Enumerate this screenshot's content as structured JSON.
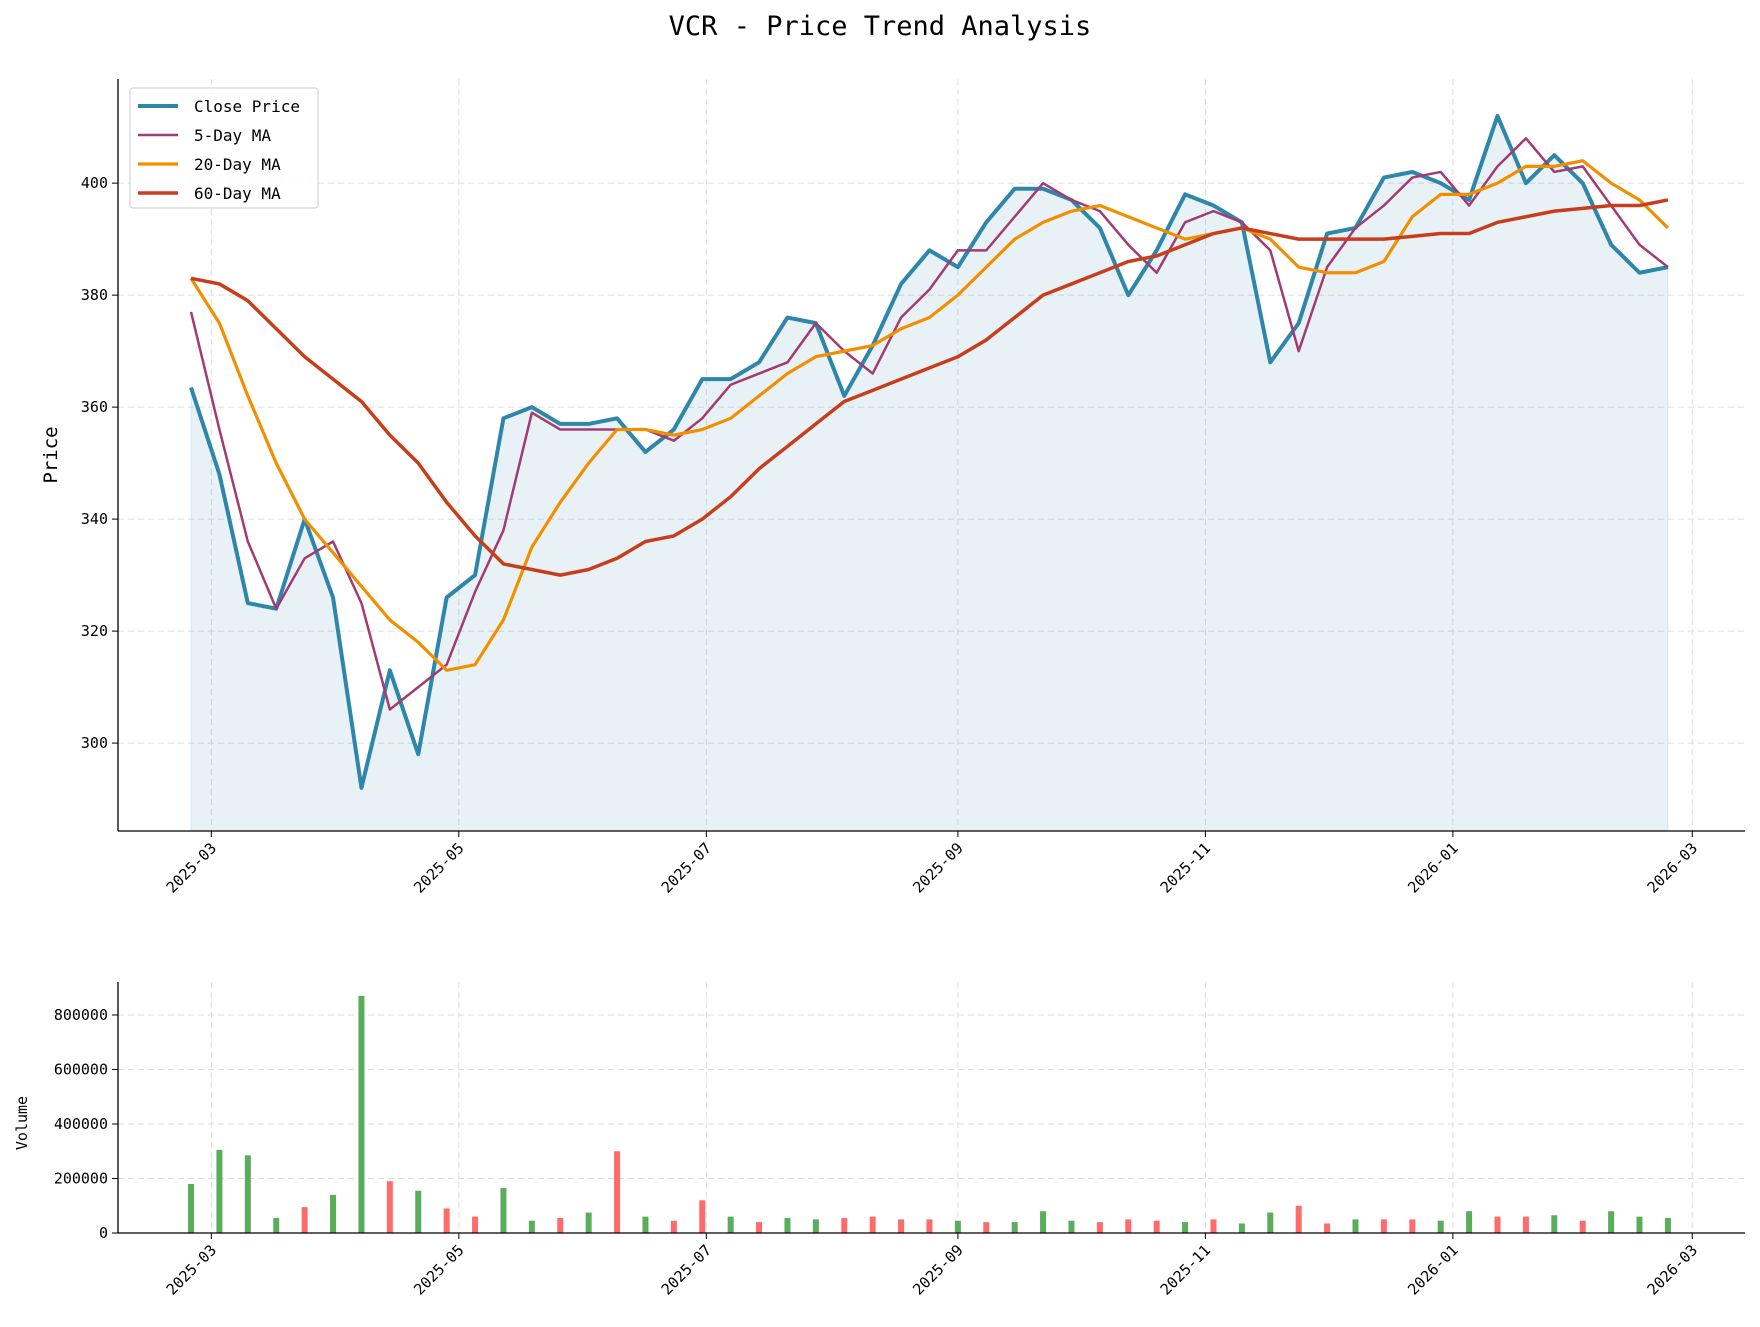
{
  "chart_data": [
    {
      "type": "line",
      "title": "VCR - Price Trend Analysis",
      "xlabel": "",
      "ylabel": "Price",
      "xlim": [
        "2025-02-06",
        "2026-03-14"
      ],
      "ylim": [
        284.3,
        418.6
      ],
      "yticks": [
        300,
        320,
        340,
        360,
        380,
        400
      ],
      "xticks": [
        "2025-03",
        "2025-05",
        "2025-07",
        "2025-09",
        "2025-11",
        "2026-01",
        "2026-03"
      ],
      "grid": true,
      "legend": "top-left",
      "fill_under_close": true,
      "x": [
        "2025-02-24",
        "2025-03-03",
        "2025-03-10",
        "2025-03-17",
        "2025-03-24",
        "2025-03-31",
        "2025-04-07",
        "2025-04-14",
        "2025-04-21",
        "2025-04-28",
        "2025-05-05",
        "2025-05-12",
        "2025-05-19",
        "2025-05-26",
        "2025-06-02",
        "2025-06-09",
        "2025-06-16",
        "2025-06-23",
        "2025-06-30",
        "2025-07-07",
        "2025-07-14",
        "2025-07-21",
        "2025-07-28",
        "2025-08-04",
        "2025-08-11",
        "2025-08-18",
        "2025-08-25",
        "2025-09-01",
        "2025-09-08",
        "2025-09-15",
        "2025-09-22",
        "2025-09-29",
        "2025-10-06",
        "2025-10-13",
        "2025-10-20",
        "2025-10-27",
        "2025-11-03",
        "2025-11-10",
        "2025-11-17",
        "2025-11-24",
        "2025-12-01",
        "2025-12-08",
        "2025-12-15",
        "2025-12-22",
        "2025-12-29",
        "2026-01-05",
        "2026-01-12",
        "2026-01-19",
        "2026-01-26",
        "2026-02-02",
        "2026-02-09",
        "2026-02-16",
        "2026-02-23"
      ],
      "series": [
        {
          "name": "Close Price",
          "color": "#2e86ab",
          "values": [
            363.5,
            348,
            325,
            324,
            340,
            326,
            292,
            313,
            298,
            326,
            330,
            358,
            360,
            357,
            357,
            358,
            352,
            356,
            365,
            365,
            368,
            376,
            375,
            362,
            371,
            382,
            388,
            385,
            393,
            399,
            399,
            397,
            392,
            380,
            388,
            398,
            396,
            393,
            368,
            375,
            391,
            392,
            401,
            402,
            400,
            397,
            412,
            400,
            405,
            400,
            389,
            384,
            385
          ]
        },
        {
          "name": "5-Day MA",
          "color": "#a23b72",
          "values": [
            377,
            356,
            336,
            324,
            333,
            336,
            325,
            306,
            310,
            314,
            327,
            338,
            359,
            356,
            356,
            356,
            356,
            354,
            358,
            364,
            366,
            368,
            375,
            370,
            366,
            376,
            381,
            388,
            388,
            394,
            400,
            397,
            395,
            389,
            384,
            393,
            395,
            393,
            388,
            370,
            385,
            392,
            396,
            401,
            402,
            396,
            403,
            408,
            402,
            403,
            396,
            389,
            385
          ]
        },
        {
          "name": "20-Day MA",
          "color": "#f18f01",
          "values": [
            383,
            375,
            362,
            350,
            340,
            334,
            328,
            322,
            318,
            313,
            314,
            322,
            335,
            343,
            350,
            356,
            356,
            355,
            356,
            358,
            362,
            366,
            369,
            370,
            371,
            374,
            376,
            380,
            385,
            390,
            393,
            395,
            396,
            394,
            392,
            390,
            391,
            392,
            390,
            385,
            384,
            384,
            386,
            394,
            398,
            398,
            400,
            403,
            403,
            404,
            400,
            397,
            392
          ]
        },
        {
          "name": "60-Day MA",
          "color": "#c73e1d",
          "values": [
            383,
            382,
            379,
            374,
            369,
            365,
            361,
            355,
            350,
            343,
            337,
            332,
            331,
            330,
            331,
            333,
            336,
            337,
            340,
            344,
            349,
            353,
            357,
            361,
            363,
            365,
            367,
            369,
            372,
            376,
            380,
            382,
            384,
            386,
            387,
            389,
            391,
            392,
            391,
            390,
            390,
            390,
            390,
            390.5,
            391,
            391,
            393,
            394,
            395,
            395.5,
            396,
            396,
            397
          ]
        }
      ]
    },
    {
      "type": "bar",
      "xlabel": "",
      "ylabel": "Volume",
      "ylim": [
        0,
        921000
      ],
      "yticks": [
        "0",
        "200000",
        "400000",
        "600000",
        "800000"
      ],
      "xticks": [
        "2025-03",
        "2025-05",
        "2025-07",
        "2025-09",
        "2025-11",
        "2026-01",
        "2026-03"
      ],
      "grid": true,
      "up_color": "#5aad5a",
      "down_color": "#ff6b6b",
      "x": [
        "2025-02-24",
        "2025-03-03",
        "2025-03-10",
        "2025-03-17",
        "2025-03-24",
        "2025-03-31",
        "2025-04-07",
        "2025-04-14",
        "2025-04-21",
        "2025-04-28",
        "2025-05-05",
        "2025-05-12",
        "2025-05-19",
        "2025-05-26",
        "2025-06-02",
        "2025-06-09",
        "2025-06-16",
        "2025-06-23",
        "2025-06-30",
        "2025-07-07",
        "2025-07-14",
        "2025-07-21",
        "2025-07-28",
        "2025-08-04",
        "2025-08-11",
        "2025-08-18",
        "2025-08-25",
        "2025-09-01",
        "2025-09-08",
        "2025-09-15",
        "2025-09-22",
        "2025-09-29",
        "2025-10-06",
        "2025-10-13",
        "2025-10-20",
        "2025-10-27",
        "2025-11-03",
        "2025-11-10",
        "2025-11-17",
        "2025-11-24",
        "2025-12-01",
        "2025-12-08",
        "2025-12-15",
        "2025-12-22",
        "2025-12-29",
        "2026-01-05",
        "2026-01-12",
        "2026-01-19",
        "2026-01-26",
        "2026-02-02",
        "2026-02-09",
        "2026-02-16",
        "2026-02-23"
      ],
      "values": [
        180000,
        305000,
        285000,
        55000,
        95000,
        140000,
        870000,
        190000,
        155000,
        90000,
        60000,
        165000,
        45000,
        55000,
        75000,
        300000,
        60000,
        45000,
        120000,
        60000,
        40000,
        55000,
        50000,
        55000,
        60000,
        50000,
        50000,
        45000,
        40000,
        40000,
        80000,
        45000,
        40000,
        50000,
        45000,
        40000,
        50000,
        35000,
        75000,
        100000,
        35000,
        50000,
        50000,
        50000,
        45000,
        80000,
        60000,
        60000,
        65000,
        45000,
        80000,
        60000,
        55000
      ],
      "up": [
        true,
        true,
        true,
        true,
        false,
        true,
        true,
        false,
        true,
        false,
        false,
        true,
        true,
        false,
        true,
        false,
        true,
        false,
        false,
        true,
        false,
        true,
        true,
        false,
        false,
        false,
        false,
        true,
        false,
        true,
        true,
        true,
        false,
        false,
        false,
        true,
        false,
        true,
        true,
        false,
        false,
        true,
        false,
        false,
        true,
        true,
        false,
        false,
        true,
        false,
        true,
        true,
        true
      ]
    }
  ]
}
